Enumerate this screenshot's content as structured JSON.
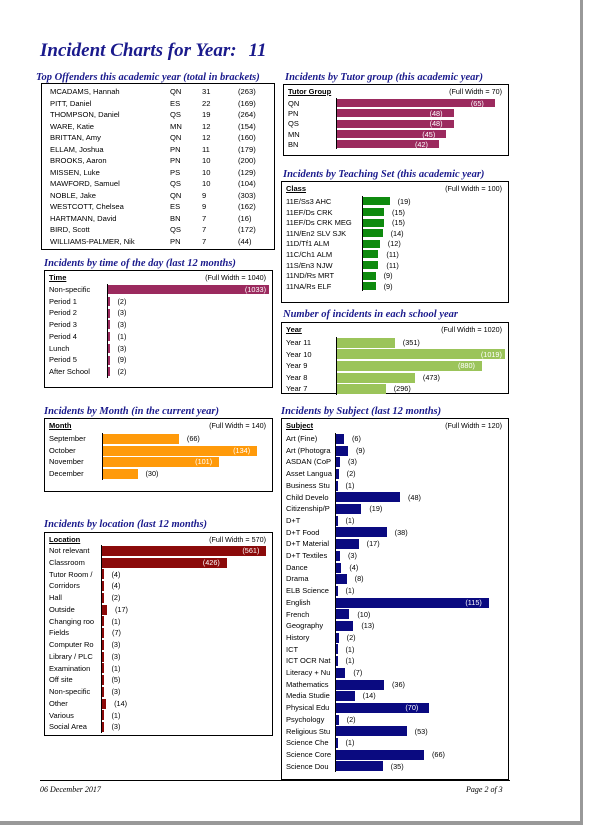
{
  "title": "Incident Charts for Year:",
  "year": "11",
  "offenders": {
    "title": "Top Offenders this academic year (total in brackets)",
    "rows": [
      {
        "name": "MCADAMS, Hannah",
        "group": "QN",
        "count": "31",
        "total": "(263)"
      },
      {
        "name": "PITT, Daniel",
        "group": "ES",
        "count": "22",
        "total": "(169)"
      },
      {
        "name": "THOMPSON, Daniel",
        "group": "QS",
        "count": "19",
        "total": "(264)"
      },
      {
        "name": "WARE, Katie",
        "group": "MN",
        "count": "12",
        "total": "(154)"
      },
      {
        "name": "BRITTAN, Amy",
        "group": "QN",
        "count": "12",
        "total": "(160)"
      },
      {
        "name": "ELLAM, Joshua",
        "group": "PN",
        "count": "11",
        "total": "(179)"
      },
      {
        "name": "BROOKS, Aaron",
        "group": "PN",
        "count": "10",
        "total": "(200)"
      },
      {
        "name": "MISSEN, Luke",
        "group": "PS",
        "count": "10",
        "total": "(129)"
      },
      {
        "name": "MAWFORD, Samuel",
        "group": "QS",
        "count": "10",
        "total": "(104)"
      },
      {
        "name": "NOBLE, Jake",
        "group": "QN",
        "count": "9",
        "total": "(303)"
      },
      {
        "name": "WESTCOTT, Chelsea",
        "group": "ES",
        "count": "9",
        "total": "(162)"
      },
      {
        "name": "HARTMANN, David",
        "group": "BN",
        "count": "7",
        "total": "(16)"
      },
      {
        "name": "BIRD, Scott",
        "group": "QS",
        "count": "7",
        "total": "(172)"
      },
      {
        "name": "WILLIAMS-PALMER, Nik",
        "group": "PN",
        "count": "7",
        "total": "(44)"
      }
    ]
  },
  "chart_data": [
    {
      "id": "tutor",
      "type": "bar",
      "orientation": "horizontal",
      "title": "Incidents by Tutor group  (this academic year)",
      "header": "Tutor Group",
      "full_width_label": "(Full Width = 70)",
      "max": 70,
      "color": "#9b2a5e",
      "categories": [
        "QN",
        "PN",
        "QS",
        "MN",
        "BN"
      ],
      "values": [
        65,
        48,
        48,
        45,
        42
      ]
    },
    {
      "id": "teaching",
      "type": "bar",
      "orientation": "horizontal",
      "title": "Incidents by Teaching Set (this academic year)",
      "header": "Class",
      "full_width_label": "(Full Width = 100)",
      "max": 100,
      "color": "#0e8a0e",
      "categories": [
        "11E/Ss3  AHC",
        "11EF/Ds  CRK",
        "11EF/Ds  CRK  MEG",
        "11N/En2  SLV  SJK",
        "11D/Tf1  ALM",
        "11C/Ch1  ALM",
        "11S/En3  NJW",
        "11ND/Rs  MRT",
        "11NA/Rs  ELF"
      ],
      "values": [
        19,
        15,
        15,
        14,
        12,
        11,
        11,
        9,
        9
      ]
    },
    {
      "id": "time",
      "type": "bar",
      "orientation": "horizontal",
      "title": "Incidents by time of the day (last 12 months)",
      "header": "Time",
      "full_width_label": "(Full Width = 1040)",
      "max": 1040,
      "color": "#9b2a5e",
      "categories": [
        "Non-specific",
        "Period 1",
        "Period 2",
        "Period 3",
        "Period 4",
        "Lunch",
        "Period 5",
        "After School"
      ],
      "values": [
        1033,
        2,
        3,
        3,
        1,
        3,
        9,
        2
      ]
    },
    {
      "id": "schoolyear",
      "type": "bar",
      "orientation": "horizontal",
      "title": "Number of incidents in each school year",
      "header": "Year",
      "full_width_label": "(Full Width = 1020)",
      "max": 1020,
      "color": "#9bc45a",
      "categories": [
        "Year 11",
        "Year 10",
        "Year 9",
        "Year 8",
        "Year 7"
      ],
      "values": [
        351,
        1019,
        880,
        473,
        296
      ]
    },
    {
      "id": "month",
      "type": "bar",
      "orientation": "horizontal",
      "title": "Incidents by Month (in the current year)",
      "header": "Month",
      "full_width_label": "(Full Width = 140)",
      "max": 140,
      "color": "#ff9a0a",
      "categories": [
        "September",
        "October",
        "November",
        "December"
      ],
      "values": [
        66,
        134,
        101,
        30
      ]
    },
    {
      "id": "subject",
      "type": "bar",
      "orientation": "horizontal",
      "title": "Incidents by Subject (last 12 months)",
      "header": "Subject",
      "full_width_label": "(Full Width = 120)",
      "max": 120,
      "color": "#0a0a80",
      "categories": [
        "Art (Fine)",
        "Art (Photogra",
        "ASDAN (CoP",
        "Asset Langua",
        "Business Stu",
        "Child Develo",
        "Citizenship/P",
        "D+T",
        "D+T Food",
        "D+T Material",
        "D+T Textiles",
        "Dance",
        "Drama",
        "ELB Science",
        "English",
        "French",
        "Geography",
        "History",
        "ICT",
        "ICT OCR Nat",
        "Literacy + Nu",
        "Mathematics",
        "Media Studie",
        "Physical Edu",
        "Psychology",
        "Religious Stu",
        "Science Che",
        "Science Core",
        "Science Dou"
      ],
      "values": [
        6,
        9,
        3,
        2,
        1,
        48,
        19,
        1,
        38,
        17,
        3,
        4,
        8,
        1,
        115,
        10,
        13,
        2,
        1,
        1,
        7,
        36,
        14,
        70,
        2,
        53,
        1,
        66,
        35
      ]
    },
    {
      "id": "location",
      "type": "bar",
      "orientation": "horizontal",
      "title": "Incidents by location (last 12 months)",
      "header": "Location",
      "full_width_label": "(Full Width = 570)",
      "max": 570,
      "color": "#8b0a0a",
      "categories": [
        "Not relevant",
        "Classroom",
        "Tutor Room /",
        "Corridors",
        "Hall",
        "Outside",
        "Changing roo",
        "Fields",
        "Computer Ro",
        "Library / PLC",
        "Examination",
        "Off site",
        "Non-specific",
        "Other",
        "Various",
        "Social Area"
      ],
      "values": [
        561,
        426,
        4,
        4,
        2,
        17,
        1,
        7,
        3,
        3,
        1,
        5,
        3,
        14,
        1,
        3
      ]
    }
  ],
  "footer": {
    "date": "06 December 2017",
    "page": "Page 2 of 3"
  }
}
